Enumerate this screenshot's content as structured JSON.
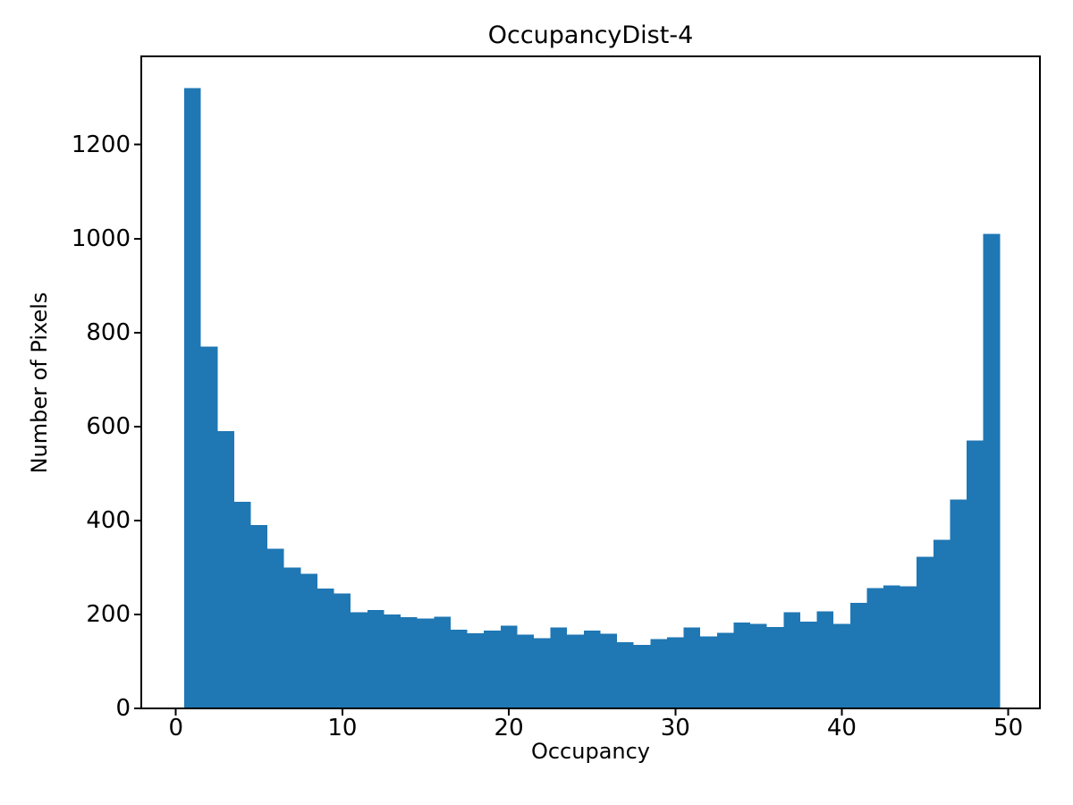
{
  "chart_data": {
    "type": "bar",
    "title": "OccupancyDist-4",
    "xlabel": "Occupancy",
    "ylabel": "Number of Pixels",
    "bar_color": "#1f77b4",
    "bin_start": 0.5,
    "bin_width": 1,
    "values": [
      1320,
      770,
      590,
      440,
      390,
      340,
      300,
      287,
      255,
      245,
      205,
      209,
      200,
      194,
      191,
      195,
      168,
      160,
      166,
      176,
      157,
      149,
      172,
      157,
      166,
      159,
      141,
      135,
      148,
      151,
      172,
      153,
      161,
      183,
      180,
      173,
      205,
      185,
      207,
      180,
      225,
      256,
      262,
      260,
      323,
      359,
      445,
      570,
      1010
    ],
    "x_ticks": [
      0,
      10,
      20,
      30,
      40,
      50
    ],
    "y_ticks": [
      0,
      200,
      400,
      600,
      800,
      1000,
      1200
    ],
    "xlim": [
      -2.08,
      51.9
    ],
    "ylim": [
      0,
      1388
    ],
    "grid": false,
    "axis_color": "#000000"
  }
}
